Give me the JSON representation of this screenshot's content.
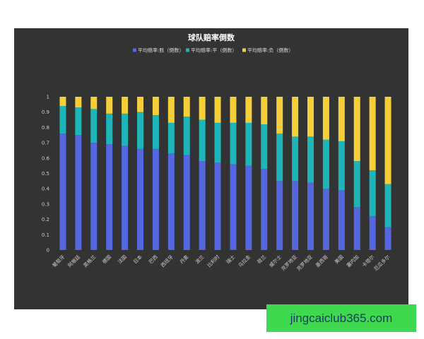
{
  "chart_data": {
    "type": "bar",
    "stacked": true,
    "title": "球队赔率倒数",
    "categories": [
      "葡萄牙",
      "阿根廷",
      "英格兰",
      "德国",
      "法国",
      "日本",
      "巴西",
      "西班牙",
      "丹麦",
      "波兰",
      "比利时",
      "瑞士",
      "乌拉圭",
      "荷兰",
      "威尔士",
      "克罗地亚",
      "克罗地亚",
      "墨西哥",
      "美国",
      "塞内加",
      "卡塔尔",
      "厄瓜多尔"
    ],
    "series": [
      {
        "name": "平均赔率:胜（倒数）",
        "color": "#5467df",
        "values": [
          0.76,
          0.75,
          0.7,
          0.69,
          0.68,
          0.66,
          0.66,
          0.63,
          0.62,
          0.58,
          0.57,
          0.56,
          0.55,
          0.53,
          0.45,
          0.45,
          0.44,
          0.4,
          0.39,
          0.28,
          0.22,
          0.15
        ]
      },
      {
        "name": "平均赔率:平（倒数）",
        "color": "#1eb5b8",
        "values": [
          0.18,
          0.18,
          0.22,
          0.2,
          0.21,
          0.24,
          0.22,
          0.2,
          0.25,
          0.27,
          0.26,
          0.27,
          0.28,
          0.29,
          0.31,
          0.29,
          0.3,
          0.32,
          0.32,
          0.3,
          0.3,
          0.28
        ]
      },
      {
        "name": "平均赔率:负（倒数）",
        "color": "#f4cf3a",
        "values": [
          0.06,
          0.07,
          0.08,
          0.11,
          0.11,
          0.1,
          0.12,
          0.17,
          0.13,
          0.15,
          0.17,
          0.17,
          0.17,
          0.18,
          0.24,
          0.26,
          0.26,
          0.28,
          0.29,
          0.42,
          0.48,
          0.57
        ]
      }
    ],
    "ylim": [
      0,
      1
    ],
    "yticks": [
      "0",
      "0.1",
      "0.2",
      "0.3",
      "0.4",
      "0.5",
      "0.6",
      "0.7",
      "0.8",
      "0.9",
      "1"
    ],
    "grid": false,
    "legend_position": "top-center"
  },
  "watermark": {
    "text": "jingcaiclub365.com",
    "background": "#3fd94f",
    "color": "#1f3a66"
  }
}
